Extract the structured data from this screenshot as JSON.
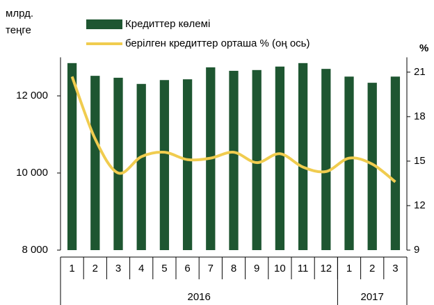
{
  "chart_data": {
    "type": "bar_line",
    "y_axis_label": "млрд. теңге",
    "y2_axis_label": "%",
    "categories": [
      "1",
      "2",
      "3",
      "4",
      "5",
      "6",
      "7",
      "8",
      "9",
      "10",
      "11",
      "12",
      "1",
      "2",
      "3"
    ],
    "years": [
      "2016",
      "2017"
    ],
    "series": [
      {
        "name": "Кредиттер көлемі",
        "color": "#1e5631",
        "type": "bar",
        "values": [
          12850,
          12520,
          12470,
          12310,
          12410,
          12430,
          12740,
          12650,
          12670,
          12760,
          12850,
          12700,
          12500,
          12340,
          12500
        ]
      },
      {
        "name": "берілген кредиттер орташа % (оң ось)",
        "color": "#f0cc4f",
        "type": "line",
        "axis": "y2",
        "values": [
          20.7,
          16.5,
          14.2,
          15.3,
          15.6,
          15.1,
          15.2,
          15.6,
          14.9,
          15.5,
          14.6,
          14.3,
          15.2,
          14.8,
          13.6
        ]
      }
    ],
    "ylim": [
      8000,
      13000
    ],
    "yticks": [
      {
        "value": 8000,
        "label": "8 000"
      },
      {
        "value": 10000,
        "label": "10 000"
      },
      {
        "value": 12000,
        "label": "12 000"
      }
    ],
    "y2lim": [
      9,
      22
    ],
    "y2ticks": [
      9,
      12,
      15,
      18,
      21
    ],
    "grid": false
  }
}
